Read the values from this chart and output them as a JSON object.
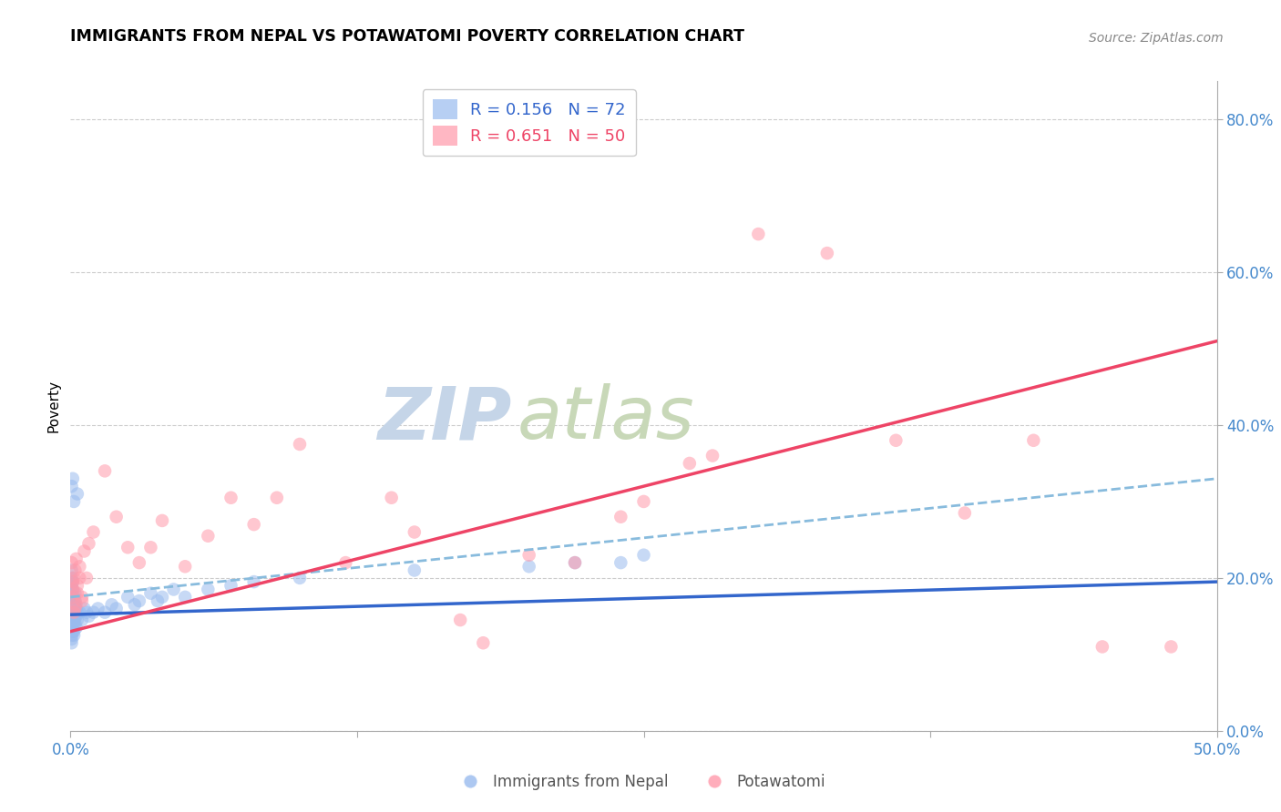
{
  "title": "IMMIGRANTS FROM NEPAL VS POTAWATOMI POVERTY CORRELATION CHART",
  "source": "Source: ZipAtlas.com",
  "xlabel_blue": "Immigrants from Nepal",
  "xlabel_pink": "Potawatomi",
  "ylabel": "Poverty",
  "x_min": 0.0,
  "x_max": 0.5,
  "y_min": 0.0,
  "y_max": 0.85,
  "right_yticks": [
    0.0,
    0.2,
    0.4,
    0.6,
    0.8
  ],
  "right_yticklabels": [
    "0.0%",
    "20.0%",
    "40.0%",
    "60.0%",
    "80.0%"
  ],
  "x_ticks": [
    0.0,
    0.125,
    0.25,
    0.375,
    0.5
  ],
  "x_ticklabels": [
    "0.0%",
    "",
    "",
    "",
    "50.0%"
  ],
  "grid_color": "#cccccc",
  "background_color": "#ffffff",
  "blue_color": "#99bbee",
  "pink_color": "#ff99aa",
  "blue_R": 0.156,
  "blue_N": 72,
  "pink_R": 0.651,
  "pink_N": 50,
  "blue_line_color": "#3366cc",
  "pink_line_color": "#ee4466",
  "dashed_line_color": "#88bbdd",
  "legend_R_color": "#3366cc",
  "legend_N_color": "#ee4466",
  "watermark_zip": "ZIP",
  "watermark_atlas": "atlas",
  "watermark_color_zip": "#c5d5e8",
  "watermark_color_atlas": "#c8d8b8",
  "blue_scatter_x": [
    0.0005,
    0.001,
    0.0015,
    0.002,
    0.0025,
    0.003,
    0.0005,
    0.001,
    0.0015,
    0.002,
    0.0025,
    0.003,
    0.0005,
    0.001,
    0.0015,
    0.002,
    0.0005,
    0.001,
    0.0015,
    0.002,
    0.0005,
    0.001,
    0.0015,
    0.002,
    0.0005,
    0.001,
    0.0005,
    0.001,
    0.0015,
    0.002,
    0.0005,
    0.001,
    0.0015,
    0.0005,
    0.001,
    0.0005,
    0.001,
    0.0005,
    0.001,
    0.0005,
    0.001,
    0.0015,
    0.002,
    0.0025,
    0.003,
    0.004,
    0.005,
    0.006,
    0.007,
    0.008,
    0.01,
    0.012,
    0.015,
    0.018,
    0.02,
    0.025,
    0.028,
    0.03,
    0.035,
    0.038,
    0.04,
    0.045,
    0.05,
    0.06,
    0.07,
    0.08,
    0.1,
    0.15,
    0.2,
    0.22,
    0.24,
    0.25
  ],
  "blue_scatter_y": [
    0.155,
    0.16,
    0.14,
    0.165,
    0.15,
    0.145,
    0.17,
    0.175,
    0.13,
    0.18,
    0.135,
    0.155,
    0.185,
    0.16,
    0.125,
    0.17,
    0.19,
    0.145,
    0.15,
    0.165,
    0.12,
    0.155,
    0.175,
    0.14,
    0.195,
    0.13,
    0.2,
    0.16,
    0.145,
    0.17,
    0.21,
    0.15,
    0.165,
    0.115,
    0.185,
    0.14,
    0.195,
    0.125,
    0.155,
    0.32,
    0.33,
    0.3,
    0.15,
    0.16,
    0.31,
    0.155,
    0.145,
    0.16,
    0.155,
    0.15,
    0.155,
    0.16,
    0.155,
    0.165,
    0.16,
    0.175,
    0.165,
    0.17,
    0.18,
    0.17,
    0.175,
    0.185,
    0.175,
    0.185,
    0.19,
    0.195,
    0.2,
    0.21,
    0.215,
    0.22,
    0.22,
    0.23
  ],
  "pink_scatter_x": [
    0.0005,
    0.001,
    0.0015,
    0.002,
    0.0025,
    0.003,
    0.004,
    0.005,
    0.0005,
    0.001,
    0.0015,
    0.002,
    0.0025,
    0.003,
    0.004,
    0.005,
    0.006,
    0.007,
    0.008,
    0.01,
    0.015,
    0.02,
    0.025,
    0.03,
    0.035,
    0.04,
    0.05,
    0.06,
    0.07,
    0.08,
    0.09,
    0.1,
    0.12,
    0.14,
    0.15,
    0.17,
    0.18,
    0.2,
    0.22,
    0.24,
    0.25,
    0.27,
    0.28,
    0.3,
    0.33,
    0.36,
    0.39,
    0.42,
    0.45,
    0.48
  ],
  "pink_scatter_y": [
    0.175,
    0.195,
    0.155,
    0.21,
    0.165,
    0.18,
    0.2,
    0.17,
    0.22,
    0.185,
    0.2,
    0.16,
    0.225,
    0.19,
    0.215,
    0.175,
    0.235,
    0.2,
    0.245,
    0.26,
    0.34,
    0.28,
    0.24,
    0.22,
    0.24,
    0.275,
    0.215,
    0.255,
    0.305,
    0.27,
    0.305,
    0.375,
    0.22,
    0.305,
    0.26,
    0.145,
    0.115,
    0.23,
    0.22,
    0.28,
    0.3,
    0.35,
    0.36,
    0.65,
    0.625,
    0.38,
    0.285,
    0.38,
    0.11,
    0.11
  ],
  "blue_trend_start_y": 0.152,
  "blue_trend_end_y": 0.195,
  "pink_trend_start_y": 0.13,
  "pink_trend_end_y": 0.51,
  "dashed_trend_start_y": 0.175,
  "dashed_trend_end_y": 0.33
}
